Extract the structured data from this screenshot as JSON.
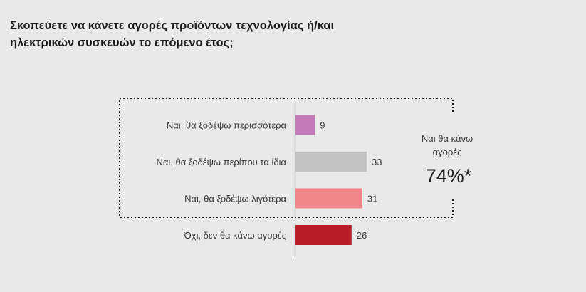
{
  "title_lines": [
    "Σκοπεύετε να κάνετε αγορές προϊόντων τεχνολογίας ή/και",
    "ηλεκτρικών συσκευών το επόμενο έτος;"
  ],
  "chart_data": {
    "type": "bar",
    "orientation": "horizontal",
    "title": "Σκοπεύετε να κάνετε αγορές προϊόντων τεχνολογίας ή/και ηλεκτρικών συσκευών το επόμενο έτος;",
    "categories": [
      "Ναι, θα ξοδέψω περισσότερα",
      "Ναι, θα ξοδέψω περίπου τα ίδια",
      "Ναι, θα ξοδέψω λιγότερα",
      "Όχι, δεν θα κάνω αγορές"
    ],
    "values": [
      9,
      33,
      31,
      26
    ],
    "colors": [
      "#c27bb8",
      "#c2c2c2",
      "#f0868a",
      "#b71c27"
    ],
    "xlim": [
      0,
      100
    ],
    "grid": false,
    "legend": "none",
    "annotation": {
      "lines": [
        "Ναι θα κάνω",
        "αγορές"
      ],
      "value": "74%*",
      "placement": "right"
    }
  }
}
